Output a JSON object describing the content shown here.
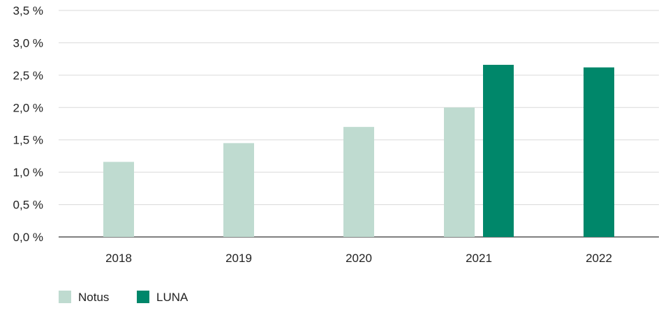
{
  "chart_data": {
    "type": "bar",
    "title": "",
    "xlabel": "",
    "ylabel": "",
    "categories": [
      "2018",
      "2019",
      "2020",
      "2021",
      "2022"
    ],
    "series": [
      {
        "name": "Notus",
        "color": "#bfdbd0",
        "values": [
          1.16,
          1.45,
          1.7,
          2.0,
          null
        ]
      },
      {
        "name": "LUNA",
        "color": "#00876a",
        "values": [
          null,
          null,
          null,
          2.66,
          2.62
        ]
      }
    ],
    "ylim": [
      0,
      3.5
    ],
    "yticks": [
      {
        "value": 0.0,
        "label": "0,0 %"
      },
      {
        "value": 0.5,
        "label": "0,5 %"
      },
      {
        "value": 1.0,
        "label": "1,0 %"
      },
      {
        "value": 1.5,
        "label": "1,5 %"
      },
      {
        "value": 2.0,
        "label": "2,0 %"
      },
      {
        "value": 2.5,
        "label": "2,5 %"
      },
      {
        "value": 3.0,
        "label": "3,0 %"
      },
      {
        "value": 3.5,
        "label": "3,5 %"
      }
    ],
    "grid": true,
    "legend_position": "bottom-left"
  }
}
